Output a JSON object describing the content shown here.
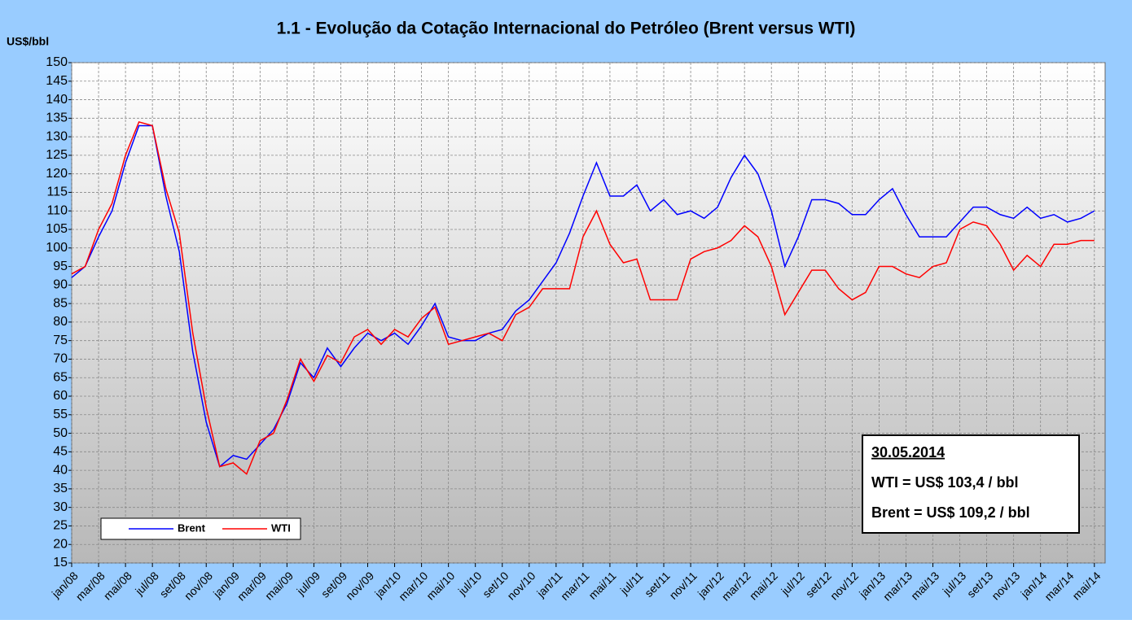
{
  "chart_data": {
    "type": "line",
    "title": "1.1 - Evolução da Cotação Internacional do Petróleo (Brent versus WTI)",
    "y_label": "US$/bbl",
    "categories": [
      "jan/08",
      null,
      "mar/08",
      null,
      "mai/08",
      null,
      "jul/08",
      null,
      "set/08",
      null,
      "nov/08",
      null,
      "jan/09",
      null,
      "mar/09",
      null,
      "mai/09",
      null,
      "jul/09",
      null,
      "set/09",
      null,
      "nov/09",
      null,
      "jan/10",
      null,
      "mar/10",
      null,
      "mai/10",
      null,
      "jul/10",
      null,
      "set/10",
      null,
      "nov/10",
      null,
      "jan/11",
      null,
      "mar/11",
      null,
      "mai/11",
      null,
      "jul/11",
      null,
      "set/11",
      null,
      "nov/11",
      null,
      "jan/12",
      null,
      "mar/12",
      null,
      "mai/12",
      null,
      "jul/12",
      null,
      "set/12",
      null,
      "nov/12",
      null,
      "jan/13",
      null,
      "mar/13",
      null,
      "mai/13",
      null,
      "jul/13",
      null,
      "set/13",
      null,
      "nov/13",
      null,
      "jan/14",
      null,
      "mar/14",
      null,
      "mai/14"
    ],
    "series": [
      {
        "name": "Brent",
        "color": "#0000ff",
        "values": [
          92,
          95,
          103,
          110,
          123,
          133,
          133,
          114,
          99,
          72,
          53,
          41,
          44,
          43,
          47,
          51,
          58,
          69,
          65,
          73,
          68,
          73,
          77,
          75,
          77,
          74,
          79,
          85,
          76,
          75,
          75,
          77,
          78,
          83,
          86,
          91,
          96,
          104,
          114,
          123,
          114,
          114,
          117,
          110,
          113,
          109,
          110,
          108,
          111,
          119,
          125,
          120,
          110,
          95,
          103,
          113,
          113,
          112,
          109,
          109,
          113,
          116,
          109,
          103,
          103,
          103,
          107,
          111,
          111,
          109,
          108,
          111,
          108,
          109,
          107,
          108,
          110
        ]
      },
      {
        "name": "WTI",
        "color": "#ff0000",
        "values": [
          93,
          95,
          105,
          112,
          125,
          134,
          133,
          116,
          104,
          77,
          57,
          41,
          42,
          39,
          48,
          50,
          59,
          70,
          64,
          71,
          69,
          76,
          78,
          74,
          78,
          76,
          81,
          84,
          74,
          75,
          76,
          77,
          75,
          82,
          84,
          89,
          89,
          89,
          103,
          110,
          101,
          96,
          97,
          86,
          86,
          86,
          97,
          99,
          100,
          102,
          106,
          103,
          95,
          82,
          88,
          94,
          94,
          89,
          86,
          88,
          95,
          95,
          93,
          92,
          95,
          96,
          105,
          107,
          106,
          101,
          94,
          98,
          95,
          101,
          101,
          102,
          102
        ]
      }
    ],
    "ylim": [
      15,
      150
    ],
    "yticks": [
      15,
      20,
      25,
      30,
      35,
      40,
      45,
      50,
      55,
      60,
      65,
      70,
      75,
      80,
      85,
      90,
      95,
      100,
      105,
      110,
      115,
      120,
      125,
      130,
      135,
      140,
      145,
      150
    ],
    "grid": true,
    "legend": "lower left",
    "annotation": {
      "date": "30.05.2014",
      "wti": "WTI = US$ 103,4 / bbl",
      "brent": "Brent = US$ 109,2 / bbl"
    }
  }
}
